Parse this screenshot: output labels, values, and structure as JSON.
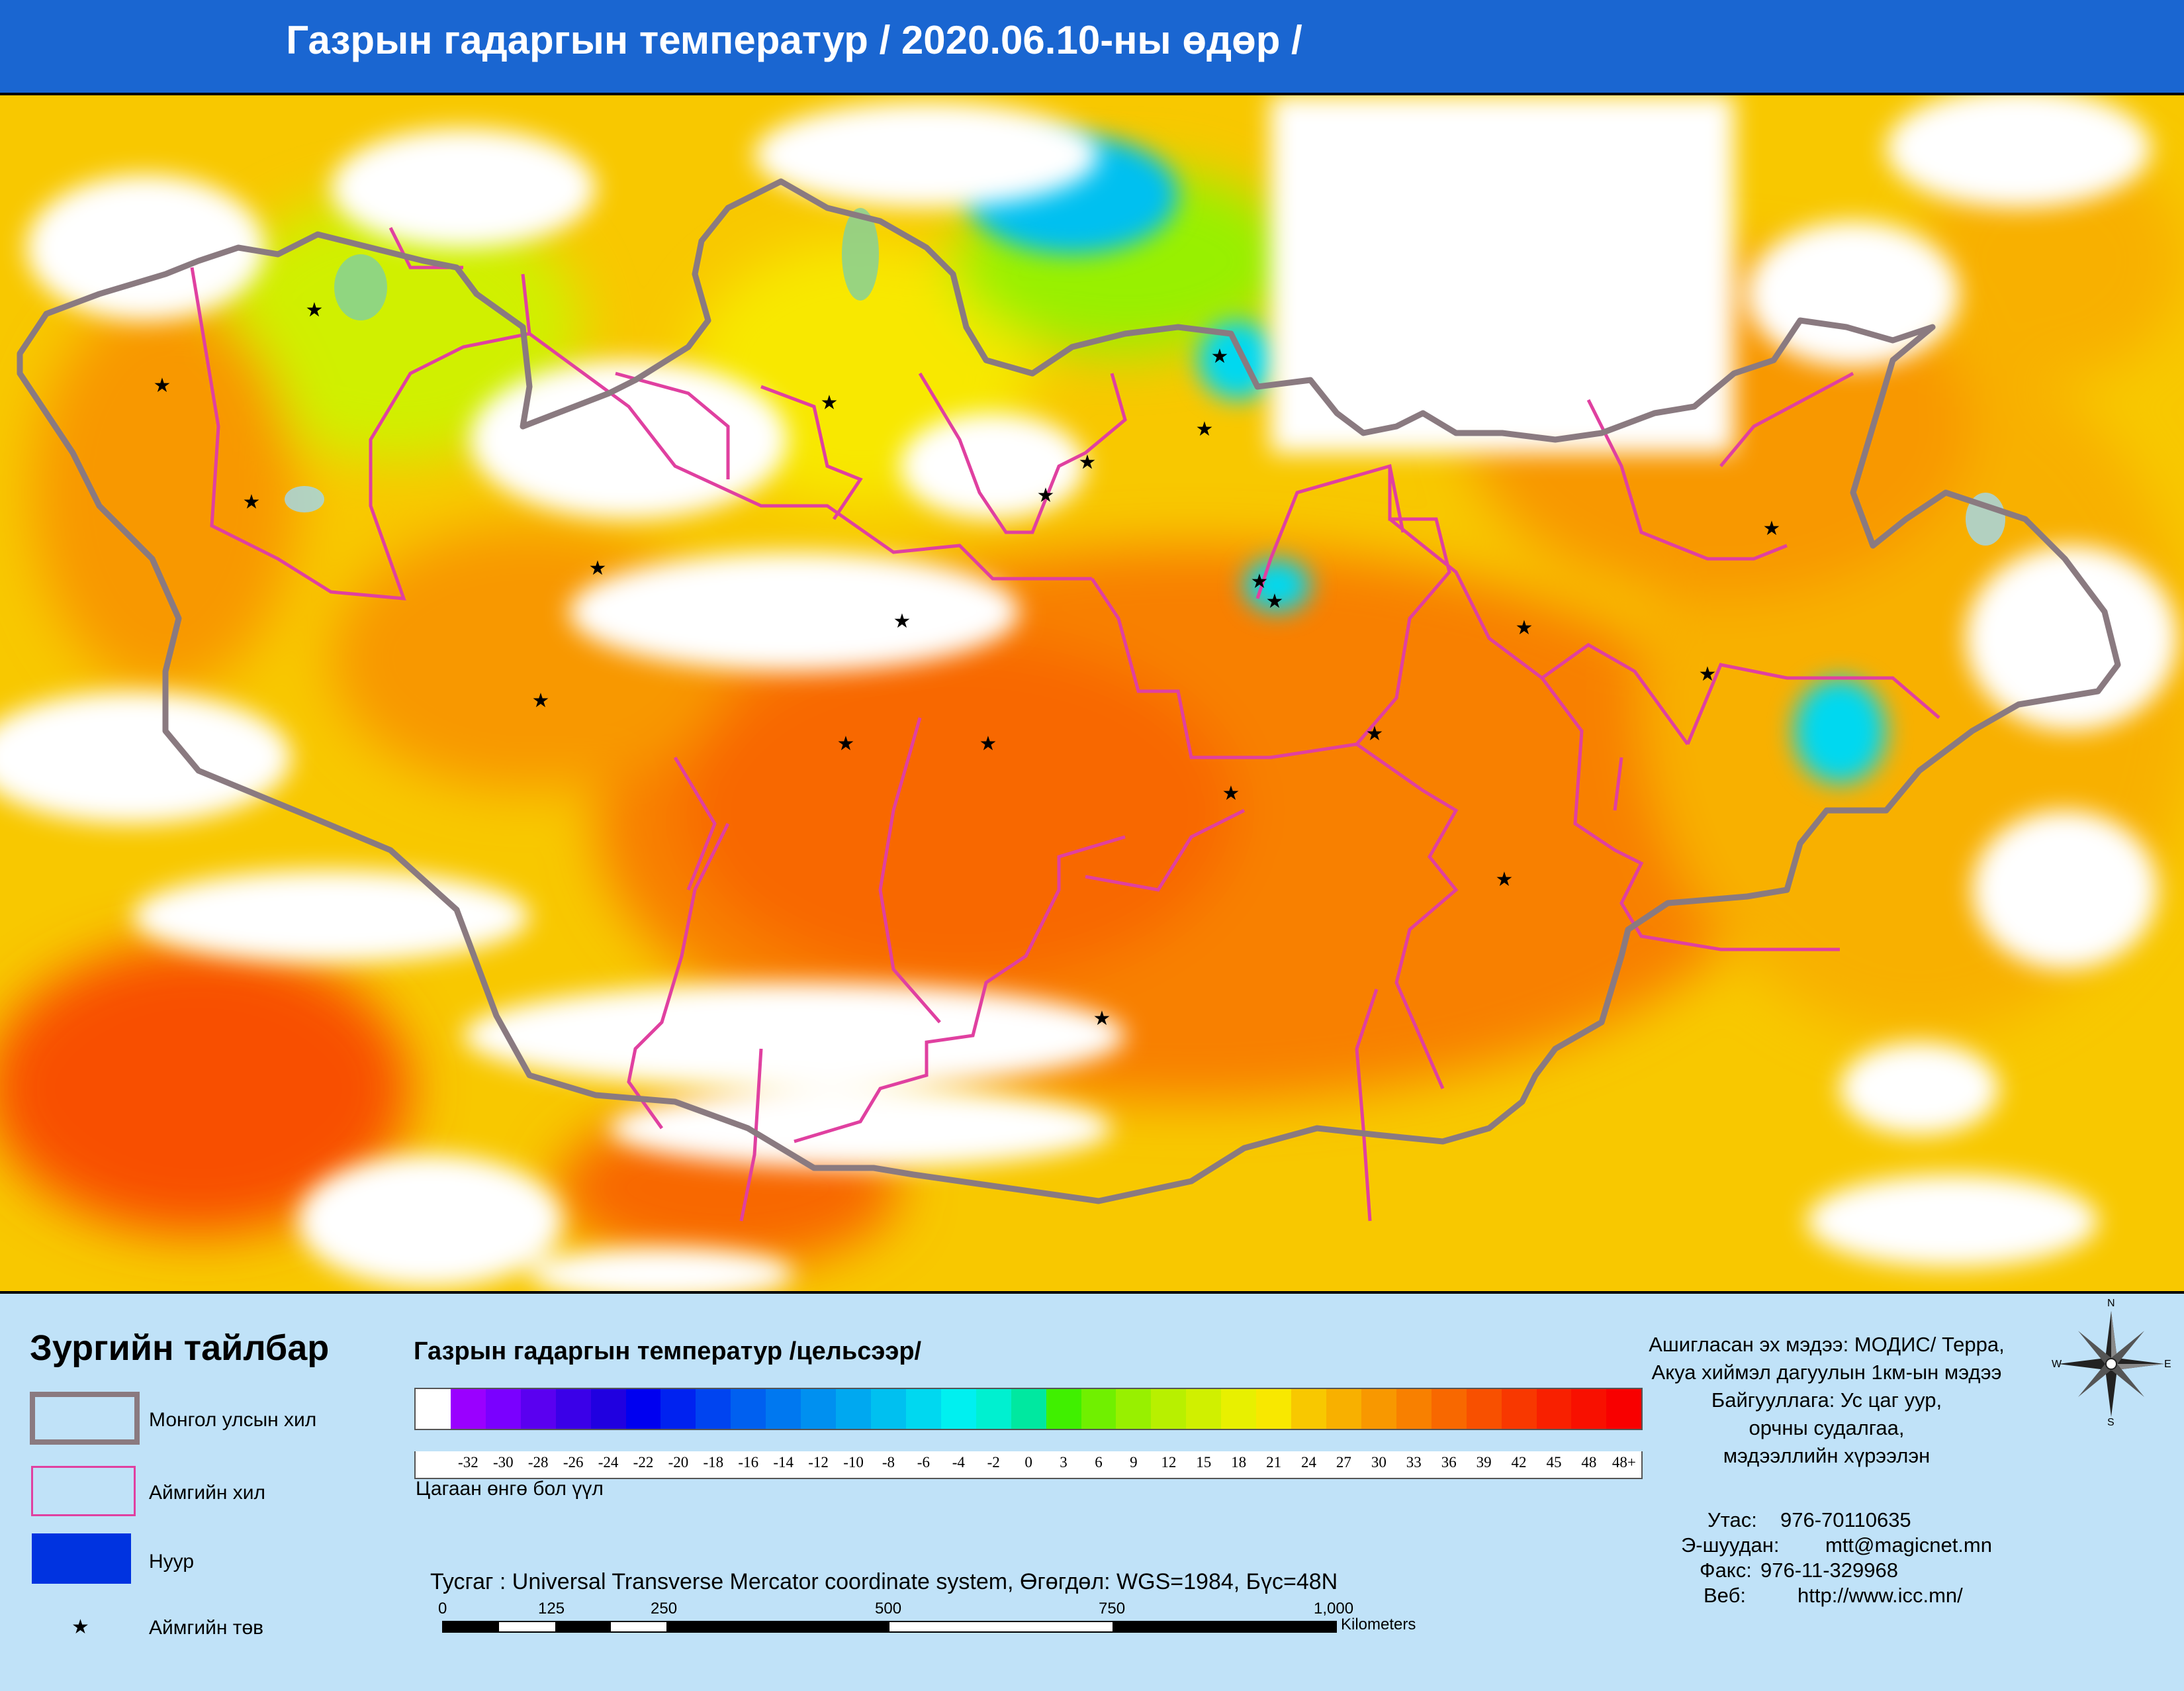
{
  "title": "Газрын гадаргын температур / 2020.06.10-ны өдөр /",
  "legend": {
    "heading": "Зургийн тайлбар",
    "items": [
      {
        "label": "Монгол улсын хил"
      },
      {
        "label": "Аймгийн хил"
      },
      {
        "label": "Нуур"
      },
      {
        "label": "Аймгийн төв"
      }
    ]
  },
  "color_scale": {
    "title": "Газрын гадаргын температур /цельсээр/",
    "labels": [
      "",
      "-32",
      "-30",
      "-28",
      "-26",
      "-24",
      "-22",
      "-20",
      "-18",
      "-16",
      "-14",
      "-12",
      "-10",
      "-8",
      "-6",
      "-4",
      "-2",
      "0",
      "3",
      "6",
      "9",
      "12",
      "15",
      "18",
      "21",
      "24",
      "27",
      "30",
      "33",
      "36",
      "39",
      "42",
      "45",
      "48",
      "48+"
    ],
    "colors": [
      "#ffffff",
      "#9a00ff",
      "#7a00ff",
      "#5a00f0",
      "#3a00e8",
      "#2000e0",
      "#0000f0",
      "#0022f0",
      "#0044f0",
      "#0060f0",
      "#0078f0",
      "#0090f0",
      "#00a8f0",
      "#00c0f0",
      "#00d8f0",
      "#00f0f0",
      "#00f0d0",
      "#00e8a0",
      "#40f000",
      "#70f000",
      "#98f000",
      "#b8f000",
      "#d0f000",
      "#e8f000",
      "#f8e800",
      "#f8c800",
      "#f8b000",
      "#f89800",
      "#f88000",
      "#f86800",
      "#f85000",
      "#f83800",
      "#f82000",
      "#f81000",
      "#f80000"
    ],
    "cloud_note": "Цагаан өнгө бол үүл"
  },
  "projection": "Тусгаг : Universal Transverse Mercator coordinate system, Өгөгдөл: WGS=1984, Бүс=48N",
  "scale_bar": {
    "labels": [
      "0",
      "125",
      "250",
      "500",
      "750",
      "1,000"
    ],
    "unit": "Kilometers"
  },
  "source": {
    "lines": [
      "Ашигласан эх мэдээ: МОДИС/ Терра,",
      "Акуа хиймэл дагуулын 1км-ын мэдээ",
      "Байгууллага: Ус цаг уур,",
      "орчны судалгаа,",
      "мэдээллийн хүрээлэн"
    ]
  },
  "contacts": {
    "phone_label": "Утас:",
    "phone": "976-70110635",
    "email_label": "Э-шуудан:",
    "email": "mtt@magicnet.mn",
    "fax_label": "Факс:",
    "fax": "976-11-329968",
    "web_label": "Веб:",
    "web": "http://www.icc.mn/"
  },
  "compass": {
    "n": "N",
    "s": "S",
    "e": "E",
    "w": "W"
  },
  "colors": {
    "title_bar": "#1a66d1",
    "legend_bg": "#c0e2f8",
    "national_border": "#8a7a80",
    "province_border": "#e040a0",
    "lake": "#0033e0"
  }
}
